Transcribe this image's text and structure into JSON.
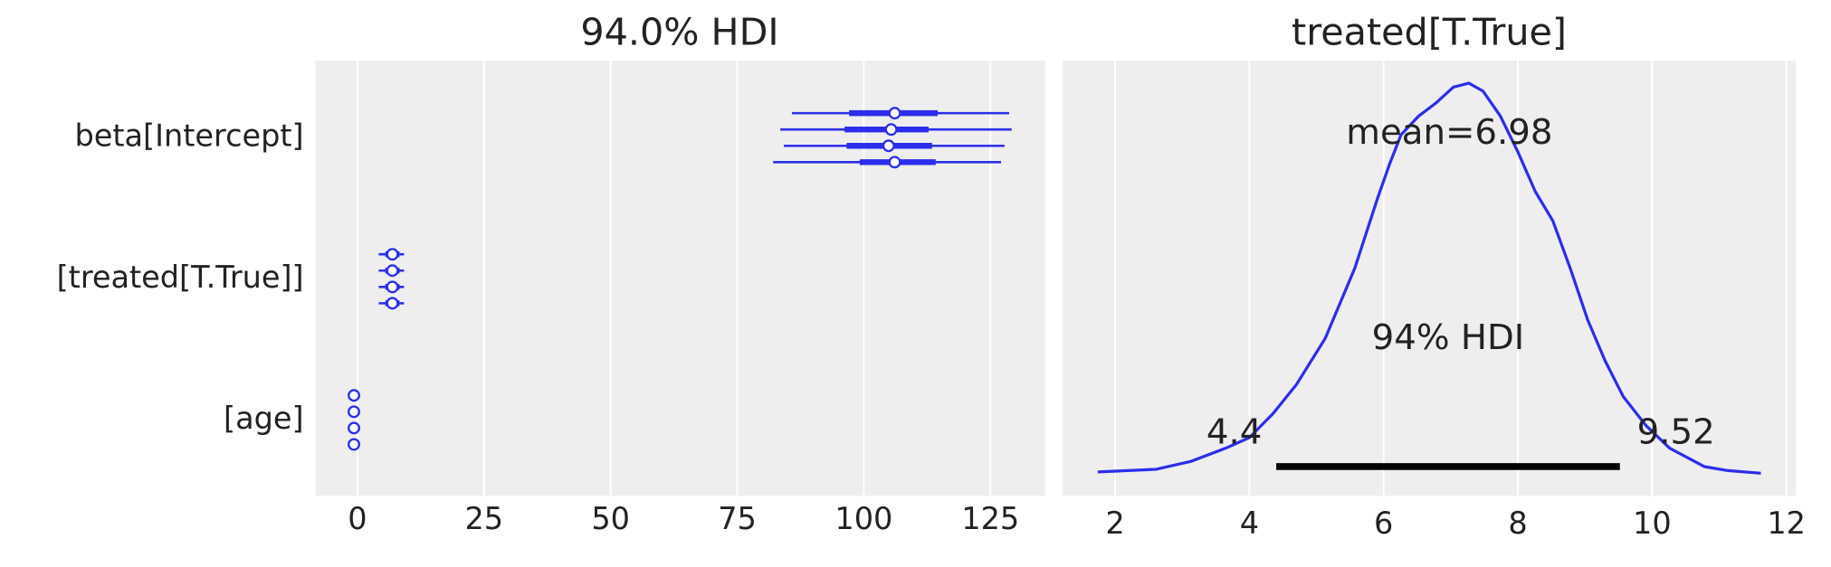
{
  "chart_data": [
    {
      "type": "forest",
      "title": "94.0% HDI",
      "categories": [
        "beta[Intercept]",
        "[treated[T.True]]",
        "[age]"
      ],
      "color": "#2a2eec",
      "medians": [
        [
          106.1,
          105.4,
          104.9,
          106.1
        ],
        [
          6.9,
          6.9,
          6.9,
          6.9
        ],
        [
          -0.7,
          -0.7,
          -0.7,
          -0.7
        ]
      ],
      "hdi_low": [
        [
          85.8,
          83.5,
          84.2,
          82.1
        ],
        [
          4.2,
          4.2,
          4.2,
          4.2
        ],
        [
          -0.9,
          -0.9,
          -0.9,
          -0.9
        ]
      ],
      "hdi_high": [
        [
          128.7,
          129.2,
          127.8,
          127.1
        ],
        [
          9.2,
          9.2,
          9.2,
          9.2
        ],
        [
          -0.5,
          -0.5,
          -0.5,
          -0.5
        ]
      ],
      "q_low": [
        [
          97.1,
          96.2,
          96.6,
          99.2
        ],
        [
          5.5,
          5.5,
          5.5,
          5.5
        ],
        [
          -0.8,
          -0.8,
          -0.8,
          -0.8
        ]
      ],
      "q_high": [
        [
          114.6,
          112.8,
          113.5,
          114.2
        ],
        [
          8.3,
          8.3,
          8.3,
          8.3
        ],
        [
          -0.6,
          -0.6,
          -0.6,
          -0.6
        ]
      ],
      "xlim": [
        -8.3,
        135.8
      ],
      "xticks": [
        0,
        25,
        50,
        75,
        100,
        125
      ],
      "grid": true
    },
    {
      "type": "density",
      "title": "treated[T.True]",
      "color": "#2a2eec",
      "x": [
        1.74,
        2.61,
        3.13,
        3.65,
        4.0,
        4.35,
        4.7,
        5.13,
        5.57,
        5.91,
        6.09,
        6.26,
        6.52,
        6.78,
        7.04,
        7.27,
        7.48,
        7.74,
        8.0,
        8.26,
        8.52,
        8.78,
        9.04,
        9.3,
        9.57,
        9.91,
        10.26,
        10.78,
        11.13,
        11.62
      ],
      "y": [
        0.001,
        0.003,
        0.009,
        0.019,
        0.027,
        0.045,
        0.067,
        0.102,
        0.155,
        0.208,
        0.234,
        0.256,
        0.27,
        0.28,
        0.292,
        0.295,
        0.289,
        0.27,
        0.243,
        0.213,
        0.191,
        0.155,
        0.116,
        0.085,
        0.058,
        0.036,
        0.019,
        0.005,
        0.002,
        0
      ],
      "mean": {
        "value": 6.98,
        "label": "mean=6.98"
      },
      "hdi_label": "94% HDI",
      "hdi": [
        4.4,
        9.52
      ],
      "xlim": [
        1.217,
        12.14
      ],
      "ylim": [
        -0.017,
        0.312
      ],
      "xticks": [
        2,
        4,
        6,
        8,
        10,
        12
      ],
      "grid": true
    }
  ]
}
